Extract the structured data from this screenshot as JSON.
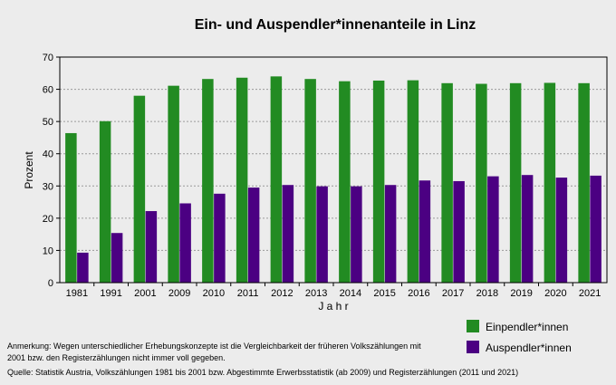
{
  "chart_data": {
    "type": "bar",
    "title": "Ein- und Auspendler*innenanteile in Linz",
    "xlabel": "J a h r",
    "ylabel": "Prozent",
    "ylim": [
      0,
      70
    ],
    "yticks": [
      0,
      10,
      20,
      30,
      40,
      50,
      60,
      70
    ],
    "grid": true,
    "legend_position": "bottom-right",
    "categories": [
      "1981",
      "1991",
      "2001",
      "2009",
      "2010",
      "2011",
      "2012",
      "2013",
      "2014",
      "2015",
      "2016",
      "2017",
      "2018",
      "2019",
      "2020",
      "2021"
    ],
    "series": [
      {
        "name": "Einpendler*innen",
        "color": "#228b22",
        "values": [
          46.4,
          50.1,
          58.0,
          61.1,
          63.2,
          63.6,
          64.0,
          63.2,
          62.5,
          62.7,
          62.8,
          61.9,
          61.7,
          61.9,
          62.0,
          61.9
        ]
      },
      {
        "name": "Auspendler*innen",
        "color": "#4b0082",
        "values": [
          9.3,
          15.4,
          22.2,
          24.6,
          27.6,
          29.5,
          30.3,
          29.9,
          29.9,
          30.3,
          31.7,
          31.5,
          33.0,
          33.4,
          32.6,
          33.2
        ]
      }
    ]
  },
  "notes": {
    "remark": "Anmerkung: Wegen unterschiedlicher Erhebungskonzepte ist die Vergleichbarkeit der früheren Volkszählungen mit 2001 bzw. den Registerzählungen nicht immer voll gegeben.",
    "source": "Quelle: Statistik Austria, Volkszählungen 1981 bis 2001 bzw. Abgestimmte Erwerbsstatistik (ab 2009) und Registerzählungen (2011 und 2021)"
  }
}
